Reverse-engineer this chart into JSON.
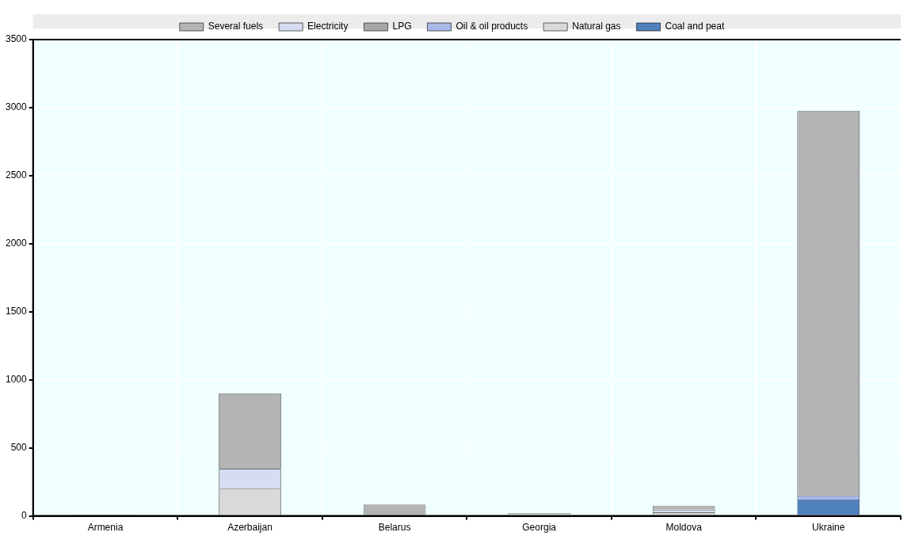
{
  "chart_data": {
    "type": "bar",
    "stacked": true,
    "categories": [
      "Armenia",
      "Azerbaijan",
      "Belarus",
      "Georgia",
      "Moldova",
      "Ukraine"
    ],
    "series": [
      {
        "name": "Coal and peat",
        "color": "#4f81bd",
        "values": [
          0,
          0,
          10,
          0,
          0,
          120
        ]
      },
      {
        "name": "Natural gas",
        "color": "#d9d9d9",
        "values": [
          10,
          200,
          0,
          20,
          25,
          0
        ]
      },
      {
        "name": "Oil & oil products",
        "color": "#a8b8e8",
        "values": [
          0,
          0,
          0,
          0,
          0,
          30
        ]
      },
      {
        "name": "LPG",
        "color": "#a6a6a6",
        "values": [
          0,
          0,
          0,
          0,
          0,
          0
        ]
      },
      {
        "name": "Electricity",
        "color": "#d6dcf2",
        "values": [
          0,
          145,
          0,
          0,
          20,
          0
        ]
      },
      {
        "name": "Several fuels",
        "color": "#b4b4b4",
        "values": [
          0,
          555,
          72,
          0,
          30,
          2825
        ]
      }
    ],
    "ylim": [
      0,
      3500
    ],
    "yticks": [
      0,
      500,
      1000,
      1500,
      2000,
      2500,
      3000,
      3500
    ],
    "grid": true,
    "legend": "top"
  }
}
